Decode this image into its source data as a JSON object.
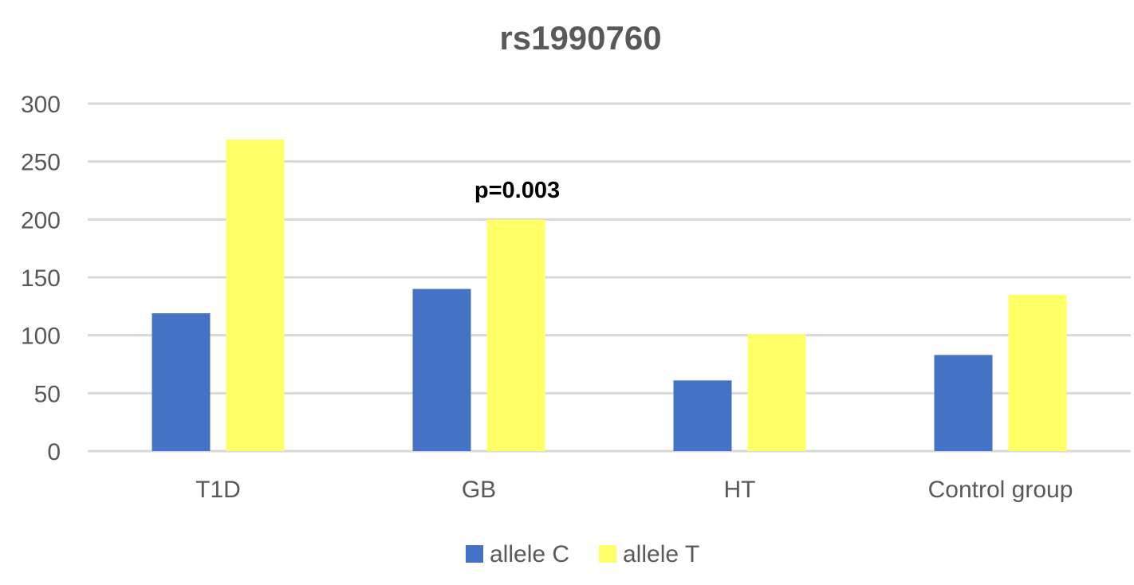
{
  "chart_data": {
    "type": "bar",
    "title": "rs1990760",
    "xlabel": "",
    "ylabel": "",
    "categories": [
      "T1D",
      "GB",
      "HT",
      "Control group"
    ],
    "series": [
      {
        "name": "allele C",
        "color": "#4472C4",
        "values": [
          119,
          140,
          61,
          83
        ]
      },
      {
        "name": "allele T",
        "color": "#FFFF66",
        "values": [
          269,
          200,
          101,
          135
        ]
      }
    ],
    "ylim": [
      0,
      300
    ],
    "yticks": [
      0,
      50,
      100,
      150,
      200,
      250,
      300
    ],
    "grid": true,
    "legend": "bottom",
    "annotations": [
      {
        "text": "p=0.003",
        "category": "GB"
      }
    ]
  }
}
